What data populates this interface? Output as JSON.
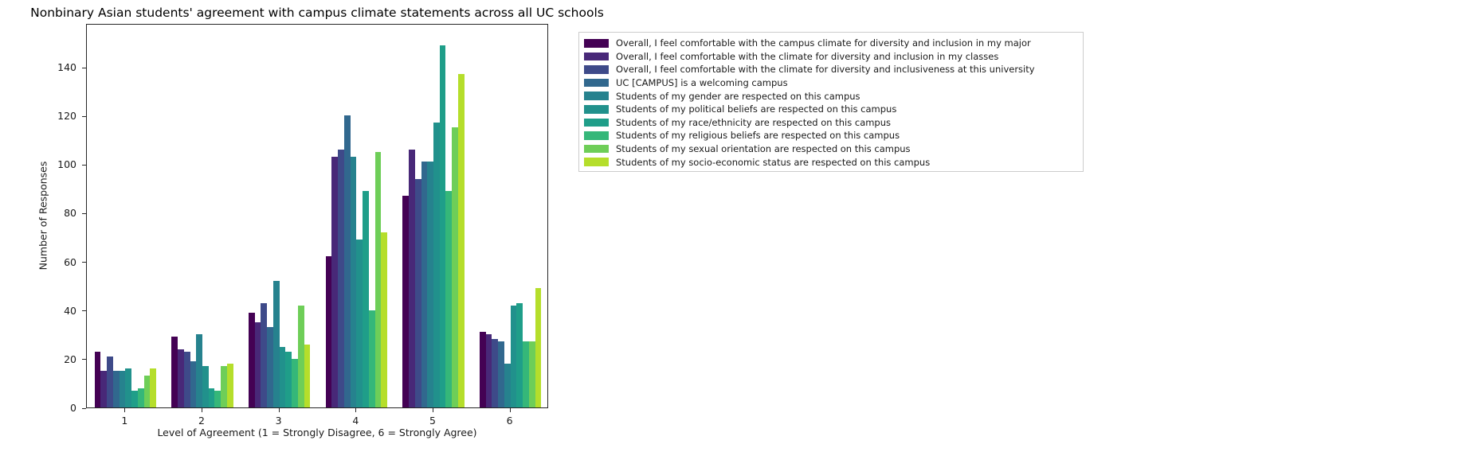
{
  "chart_data": {
    "type": "bar",
    "title": "Nonbinary Asian students' agreement with campus climate statements across all UC schools",
    "xlabel": "Level of Agreement (1 = Strongly Disagree, 6 = Strongly Agree)",
    "ylabel": "Number of Responses",
    "categories": [
      "1",
      "2",
      "3",
      "4",
      "5",
      "6"
    ],
    "yticks": [
      0,
      20,
      40,
      60,
      80,
      100,
      120,
      140
    ],
    "ylim": [
      0,
      158
    ],
    "grid": false,
    "legend_position": "outside-upper-right",
    "bar_group_width": 0.8,
    "palette_name": "viridis",
    "series": [
      {
        "name": "Overall, I feel comfortable with the campus climate for diversity and inclusion in my major",
        "color": "#440154",
        "values": [
          23,
          29,
          39,
          62,
          87,
          31
        ]
      },
      {
        "name": "Overall, I feel comfortable with the climate for diversity and inclusion in my classes",
        "color": "#482878",
        "values": [
          15,
          24,
          35,
          103,
          106,
          30
        ]
      },
      {
        "name": "Overall, I feel comfortable with the climate for diversity and inclusiveness at this university",
        "color": "#3e4a89",
        "values": [
          21,
          23,
          43,
          106,
          94,
          28
        ]
      },
      {
        "name": "UC [CAMPUS] is a welcoming campus",
        "color": "#31688e",
        "values": [
          15,
          19,
          33,
          120,
          101,
          27
        ]
      },
      {
        "name": "Students of my gender are respected on this campus",
        "color": "#26828e",
        "values": [
          15,
          30,
          52,
          103,
          101,
          18
        ]
      },
      {
        "name": "Students of my political beliefs are respected on this campus",
        "color": "#21918c",
        "values": [
          16,
          17,
          25,
          69,
          117,
          42
        ]
      },
      {
        "name": "Students of my race/ethnicity are respected on this campus",
        "color": "#1f9e89",
        "values": [
          7,
          8,
          23,
          89,
          149,
          43
        ]
      },
      {
        "name": "Students of my religious beliefs are respected on this campus",
        "color": "#35b779",
        "values": [
          8,
          7,
          20,
          40,
          89,
          27
        ]
      },
      {
        "name": "Students of my sexual orientation are respected on this campus",
        "color": "#6ece58",
        "values": [
          13,
          17,
          42,
          105,
          115,
          27
        ]
      },
      {
        "name": "Students of my socio-economic status are respected on this campus",
        "color": "#b5de2b",
        "values": [
          16,
          18,
          26,
          72,
          137,
          49
        ]
      }
    ]
  }
}
